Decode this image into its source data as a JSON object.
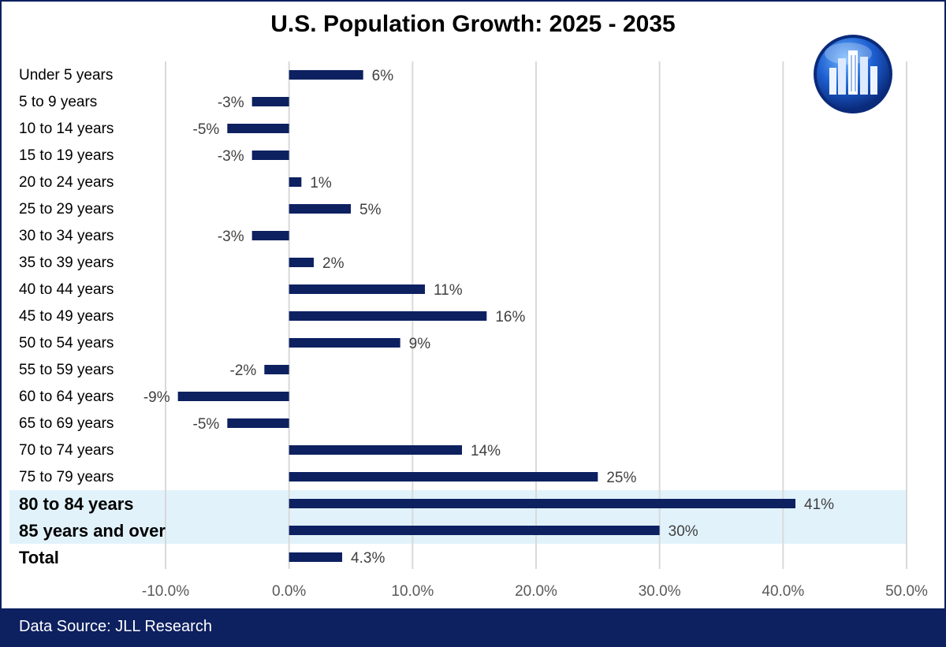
{
  "title": "U.S. Population Growth: 2025 - 2035",
  "footer": {
    "source": "Data Source: JLL Research"
  },
  "logo": {
    "icon": "city-buildings-globe-icon"
  },
  "colors": {
    "bar": "#0d2060",
    "grid": "#d9d9d9",
    "highlight": "#e1f2fb",
    "frame": "#0d2060"
  },
  "chart_data": {
    "type": "bar",
    "orientation": "horizontal",
    "categories": [
      "Under 5 years",
      "5 to 9 years",
      "10 to 14 years",
      "15 to 19 years",
      "20 to 24 years",
      "25 to 29 years",
      "30 to 34 years",
      "35 to 39 years",
      "40 to 44 years",
      "45 to 49 years",
      "50 to 54 years",
      "55 to 59 years",
      "60 to 64 years",
      "65 to 69 years",
      "70 to 74 years",
      "75 to 79 years",
      "80 to 84 years",
      "85 years and over",
      "Total"
    ],
    "values": [
      6,
      -3,
      -5,
      -3,
      1,
      5,
      -3,
      2,
      11,
      16,
      9,
      -2,
      -9,
      -5,
      14,
      25,
      41,
      30,
      4.3
    ],
    "data_labels": [
      "6%",
      "-3%",
      "-5%",
      "-3%",
      "1%",
      "5%",
      "-3%",
      "2%",
      "11%",
      "16%",
      "9%",
      "-2%",
      "-9%",
      "-5%",
      "14%",
      "25%",
      "41%",
      "30%",
      "4.3%"
    ],
    "bold_categories": [
      "80 to 84 years",
      "85 years and over",
      "Total"
    ],
    "highlighted_categories": [
      "80 to 84 years",
      "85 years and over"
    ],
    "xlim": [
      -10,
      50
    ],
    "x_ticks": [
      -10,
      0,
      10,
      20,
      30,
      40,
      50
    ],
    "x_tick_labels": [
      "-10.0%",
      "0.0%",
      "10.0%",
      "20.0%",
      "30.0%",
      "40.0%",
      "50.0%"
    ],
    "grid": "vertical",
    "legend": "none"
  }
}
